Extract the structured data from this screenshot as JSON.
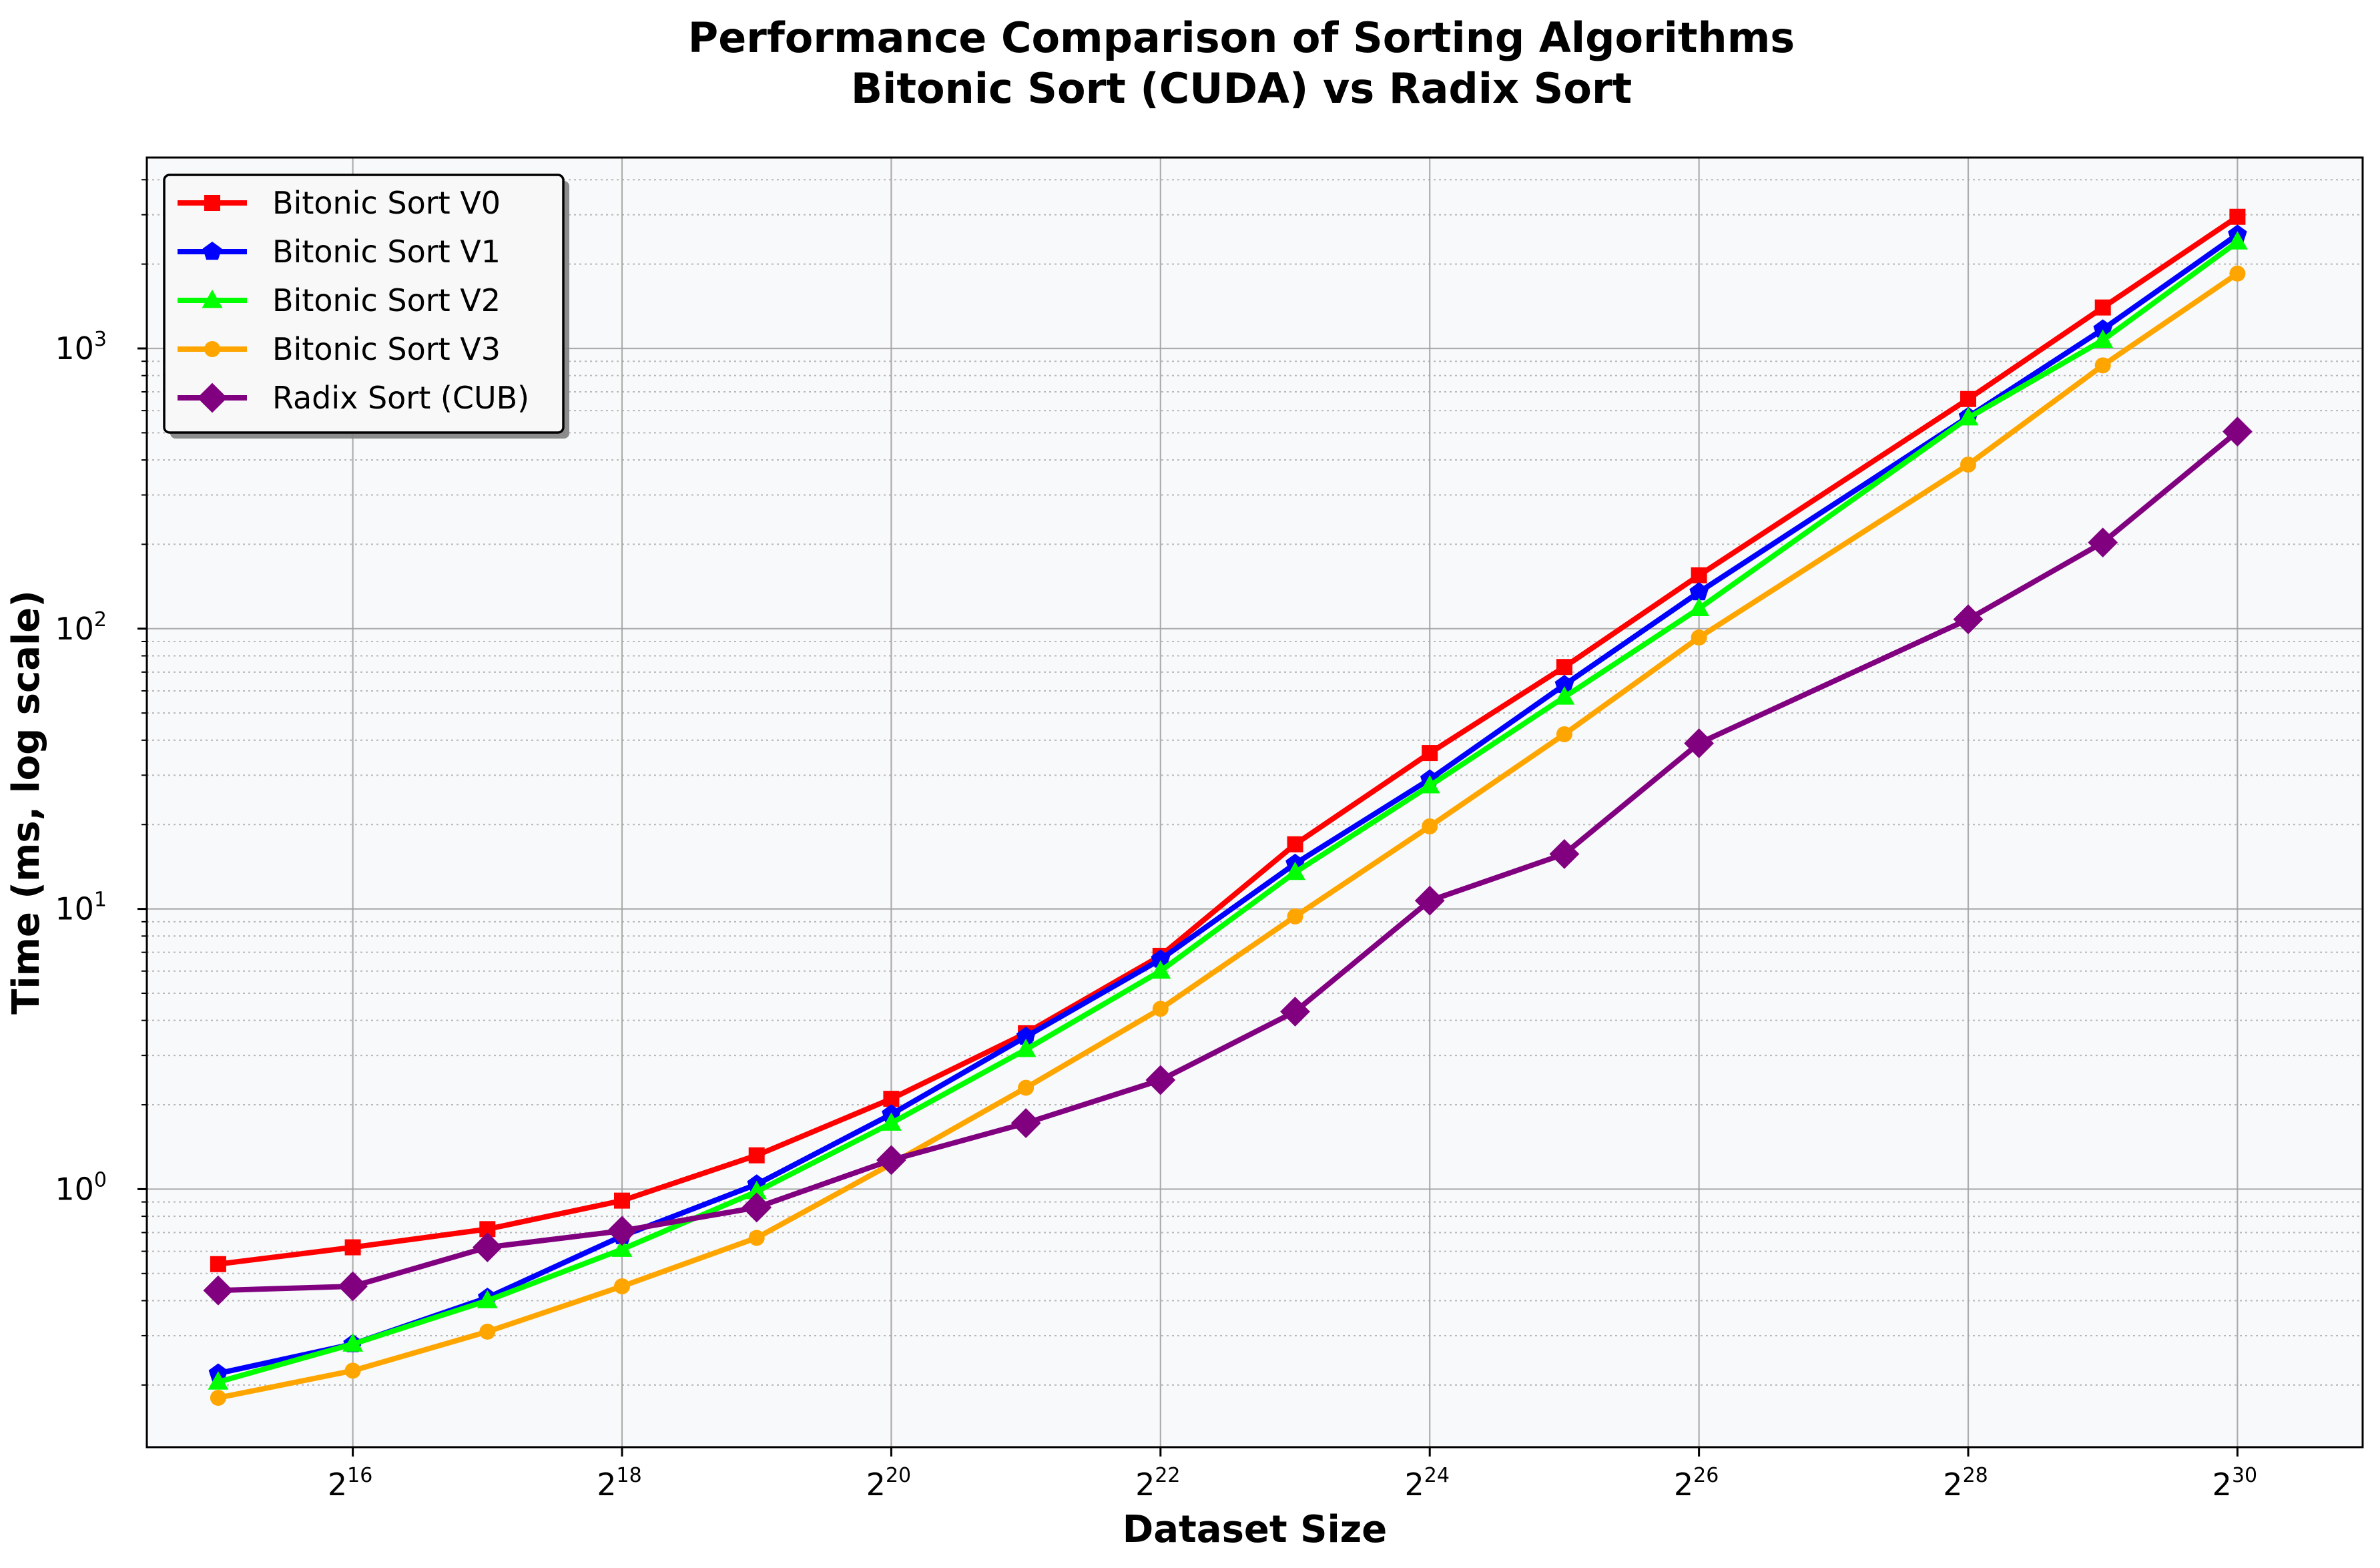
{
  "chart_data": {
    "type": "line",
    "title_lines": [
      "Performance Comparison of Sorting Algorithms",
      "Bitonic Sort (CUDA) vs Radix Sort"
    ],
    "xlabel": "Dataset Size",
    "ylabel": "Time (ms, log scale)",
    "x_scale": "log2",
    "y_scale": "log10",
    "xlim_exponent": [
      14.47,
      30.93
    ],
    "ylim": [
      0.12,
      4800
    ],
    "x_ticks": [
      {
        "base": "2",
        "exp": "16",
        "value": 16
      },
      {
        "base": "2",
        "exp": "18",
        "value": 18
      },
      {
        "base": "2",
        "exp": "20",
        "value": 20
      },
      {
        "base": "2",
        "exp": "22",
        "value": 22
      },
      {
        "base": "2",
        "exp": "24",
        "value": 24
      },
      {
        "base": "2",
        "exp": "26",
        "value": 26
      },
      {
        "base": "2",
        "exp": "28",
        "value": 28
      },
      {
        "base": "2",
        "exp": "30",
        "value": 30
      }
    ],
    "y_ticks": [
      {
        "base": "10",
        "exp": "0",
        "value": 1
      },
      {
        "base": "10",
        "exp": "1",
        "value": 10
      },
      {
        "base": "10",
        "exp": "2",
        "value": 100
      },
      {
        "base": "10",
        "exp": "3",
        "value": 1000
      }
    ],
    "grid": true,
    "legend_position": "top-left",
    "series": [
      {
        "name": "Bitonic Sort V0",
        "color": "#ff0000",
        "marker": "square",
        "x": [
          15,
          16,
          17,
          18,
          19,
          20,
          21,
          22,
          23,
          24,
          25,
          26,
          28,
          29,
          30
        ],
        "y": [
          0.54,
          0.62,
          0.72,
          0.91,
          1.32,
          2.1,
          3.6,
          6.8,
          17,
          36,
          73,
          155,
          660,
          1400,
          2950
        ]
      },
      {
        "name": "Bitonic Sort V1",
        "color": "#0000ff",
        "marker": "pentagon",
        "x": [
          15,
          16,
          17,
          18,
          19,
          20,
          21,
          22,
          23,
          24,
          25,
          26,
          28,
          29,
          30
        ],
        "y": [
          0.22,
          0.28,
          0.41,
          0.68,
          1.04,
          1.85,
          3.5,
          6.6,
          14.5,
          29,
          63,
          135,
          570,
          1170,
          2550
        ]
      },
      {
        "name": "Bitonic Sort V2",
        "color": "#00ff00",
        "marker": "triangle",
        "x": [
          15,
          16,
          17,
          18,
          19,
          20,
          21,
          22,
          23,
          24,
          25,
          26,
          28,
          29,
          30
        ],
        "y": [
          0.205,
          0.28,
          0.4,
          0.61,
          0.98,
          1.72,
          3.15,
          6.0,
          13.5,
          27.5,
          57,
          118,
          565,
          1070,
          2400
        ]
      },
      {
        "name": "Bitonic Sort V3",
        "color": "#ffa500",
        "marker": "circle",
        "x": [
          15,
          16,
          17,
          18,
          19,
          20,
          21,
          22,
          23,
          24,
          25,
          26,
          28,
          29,
          30
        ],
        "y": [
          0.18,
          0.225,
          0.31,
          0.45,
          0.67,
          1.23,
          2.3,
          4.4,
          9.4,
          19.7,
          42,
          93,
          385,
          870,
          1850
        ]
      },
      {
        "name": "Radix Sort (CUB)",
        "color": "#800080",
        "marker": "diamond",
        "x": [
          15,
          16,
          17,
          18,
          19,
          20,
          21,
          22,
          23,
          24,
          25,
          26,
          28,
          29,
          30
        ],
        "y": [
          0.435,
          0.45,
          0.62,
          0.71,
          0.86,
          1.27,
          1.72,
          2.45,
          4.3,
          10.7,
          15.7,
          39,
          108,
          203,
          505
        ]
      }
    ]
  }
}
